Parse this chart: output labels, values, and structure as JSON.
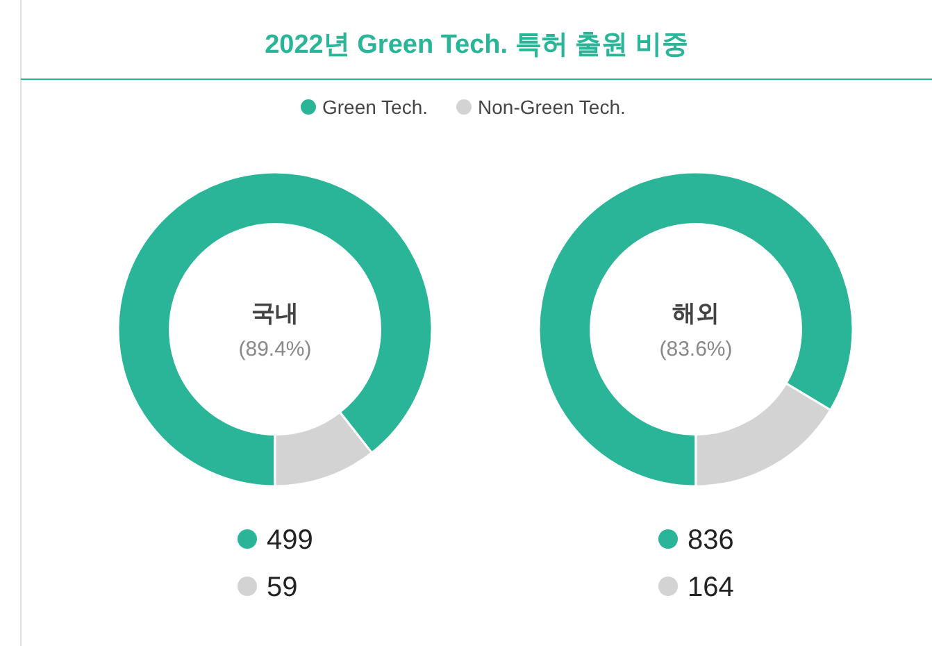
{
  "chart_data": [
    {
      "type": "other",
      "title": "2022년 Green Tech. 특허 출원 비중"
    },
    {
      "type": "donut",
      "title": "국내",
      "annotations": [
        "(89.4%)"
      ],
      "categories": [
        "Green Tech.",
        "Non-Green Tech."
      ],
      "values": [
        499,
        59
      ],
      "colors": [
        "#2bb598",
        "#d3d3d3"
      ],
      "data_labels": true,
      "legend": "top"
    },
    {
      "type": "donut",
      "title": "해외",
      "annotations": [
        "(83.6%)"
      ],
      "categories": [
        null,
        null
      ],
      "values": [
        836,
        164
      ],
      "colors": [
        "#2bb598",
        "#d3d3d3"
      ],
      "data_labels": true
    }
  ]
}
